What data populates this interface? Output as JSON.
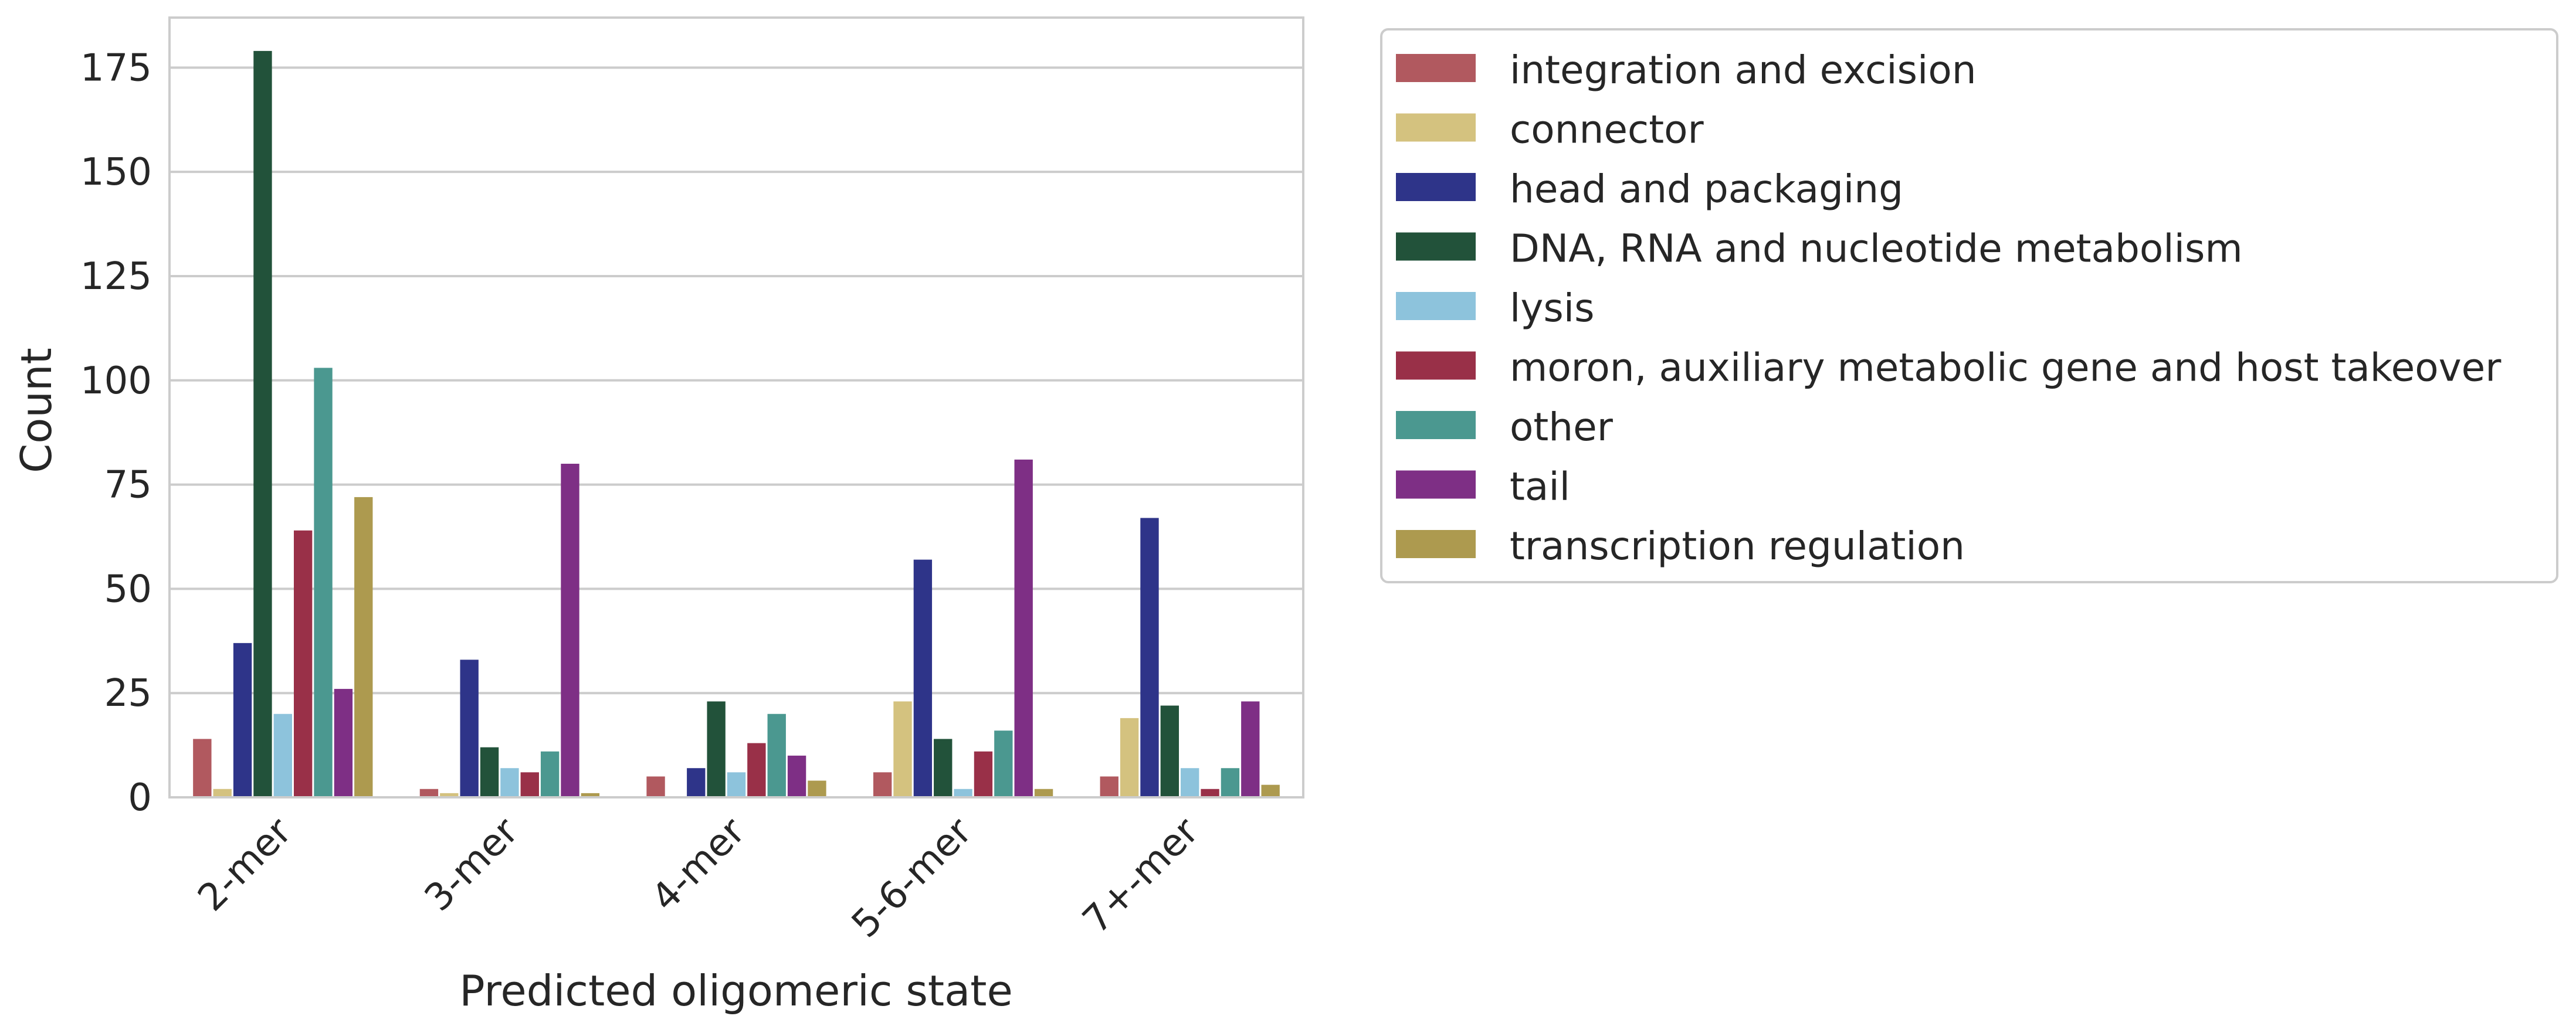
{
  "chart_data": {
    "type": "bar",
    "xlabel": "Predicted oligomeric state",
    "ylabel": "Count",
    "ylim": [
      0,
      187
    ],
    "yticks": [
      0,
      25,
      50,
      75,
      100,
      125,
      150,
      175
    ],
    "grid": "horizontal",
    "legend_position": "right, outside plot",
    "categories": [
      "2-mer",
      "3-mer",
      "4-mer",
      "5-6-mer",
      "7+-mer"
    ],
    "series": [
      {
        "name": "integration and excision",
        "color": "#b1595f",
        "values": [
          14,
          2,
          5,
          6,
          5
        ]
      },
      {
        "name": "connector",
        "color": "#d4c27f",
        "values": [
          2,
          1,
          0,
          23,
          19
        ]
      },
      {
        "name": "head and packaging",
        "color": "#2e3489",
        "values": [
          37,
          33,
          7,
          57,
          67
        ]
      },
      {
        "name": "DNA, RNA and nucleotide metabolism",
        "color": "#22523a",
        "values": [
          179,
          12,
          23,
          14,
          22
        ]
      },
      {
        "name": "lysis",
        "color": "#8dc3dc",
        "values": [
          20,
          7,
          6,
          2,
          7
        ]
      },
      {
        "name": "moron, auxiliary metabolic gene and host takeover",
        "color": "#993048",
        "values": [
          64,
          6,
          13,
          11,
          2
        ]
      },
      {
        "name": "other",
        "color": "#4b9890",
        "values": [
          103,
          11,
          20,
          16,
          7
        ]
      },
      {
        "name": "tail",
        "color": "#7e2f85",
        "values": [
          26,
          80,
          10,
          81,
          23
        ]
      },
      {
        "name": "transcription regulation",
        "color": "#ad9a4f",
        "values": [
          72,
          1,
          4,
          2,
          3
        ]
      }
    ]
  }
}
